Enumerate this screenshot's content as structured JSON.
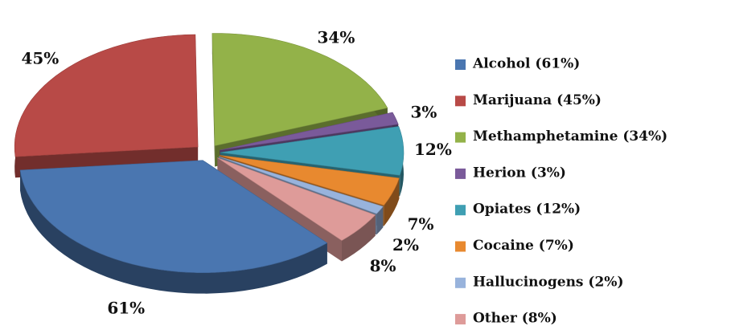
{
  "chart_data": {
    "type": "pie3d",
    "categories": [
      "Alcohol (61%)",
      "Marijuana (45%)",
      "Methamphetamine (34%)",
      "Herion (3%)",
      "Opiates (12%)",
      "Cocaine (7%)",
      "Hallucinogens (2%)",
      "Other (8%)"
    ],
    "values": [
      61,
      45,
      34,
      3,
      12,
      7,
      2,
      8
    ],
    "value_labels": [
      "61%",
      "45%",
      "34%",
      "3%",
      "12%",
      "7%",
      "2%",
      "8%"
    ],
    "colors": [
      "#4a76b0",
      "#b84a47",
      "#93b249",
      "#7a5a9a",
      "#3f9fb3",
      "#e8892f",
      "#98b3dc",
      "#de9b99"
    ],
    "legend": "right"
  }
}
